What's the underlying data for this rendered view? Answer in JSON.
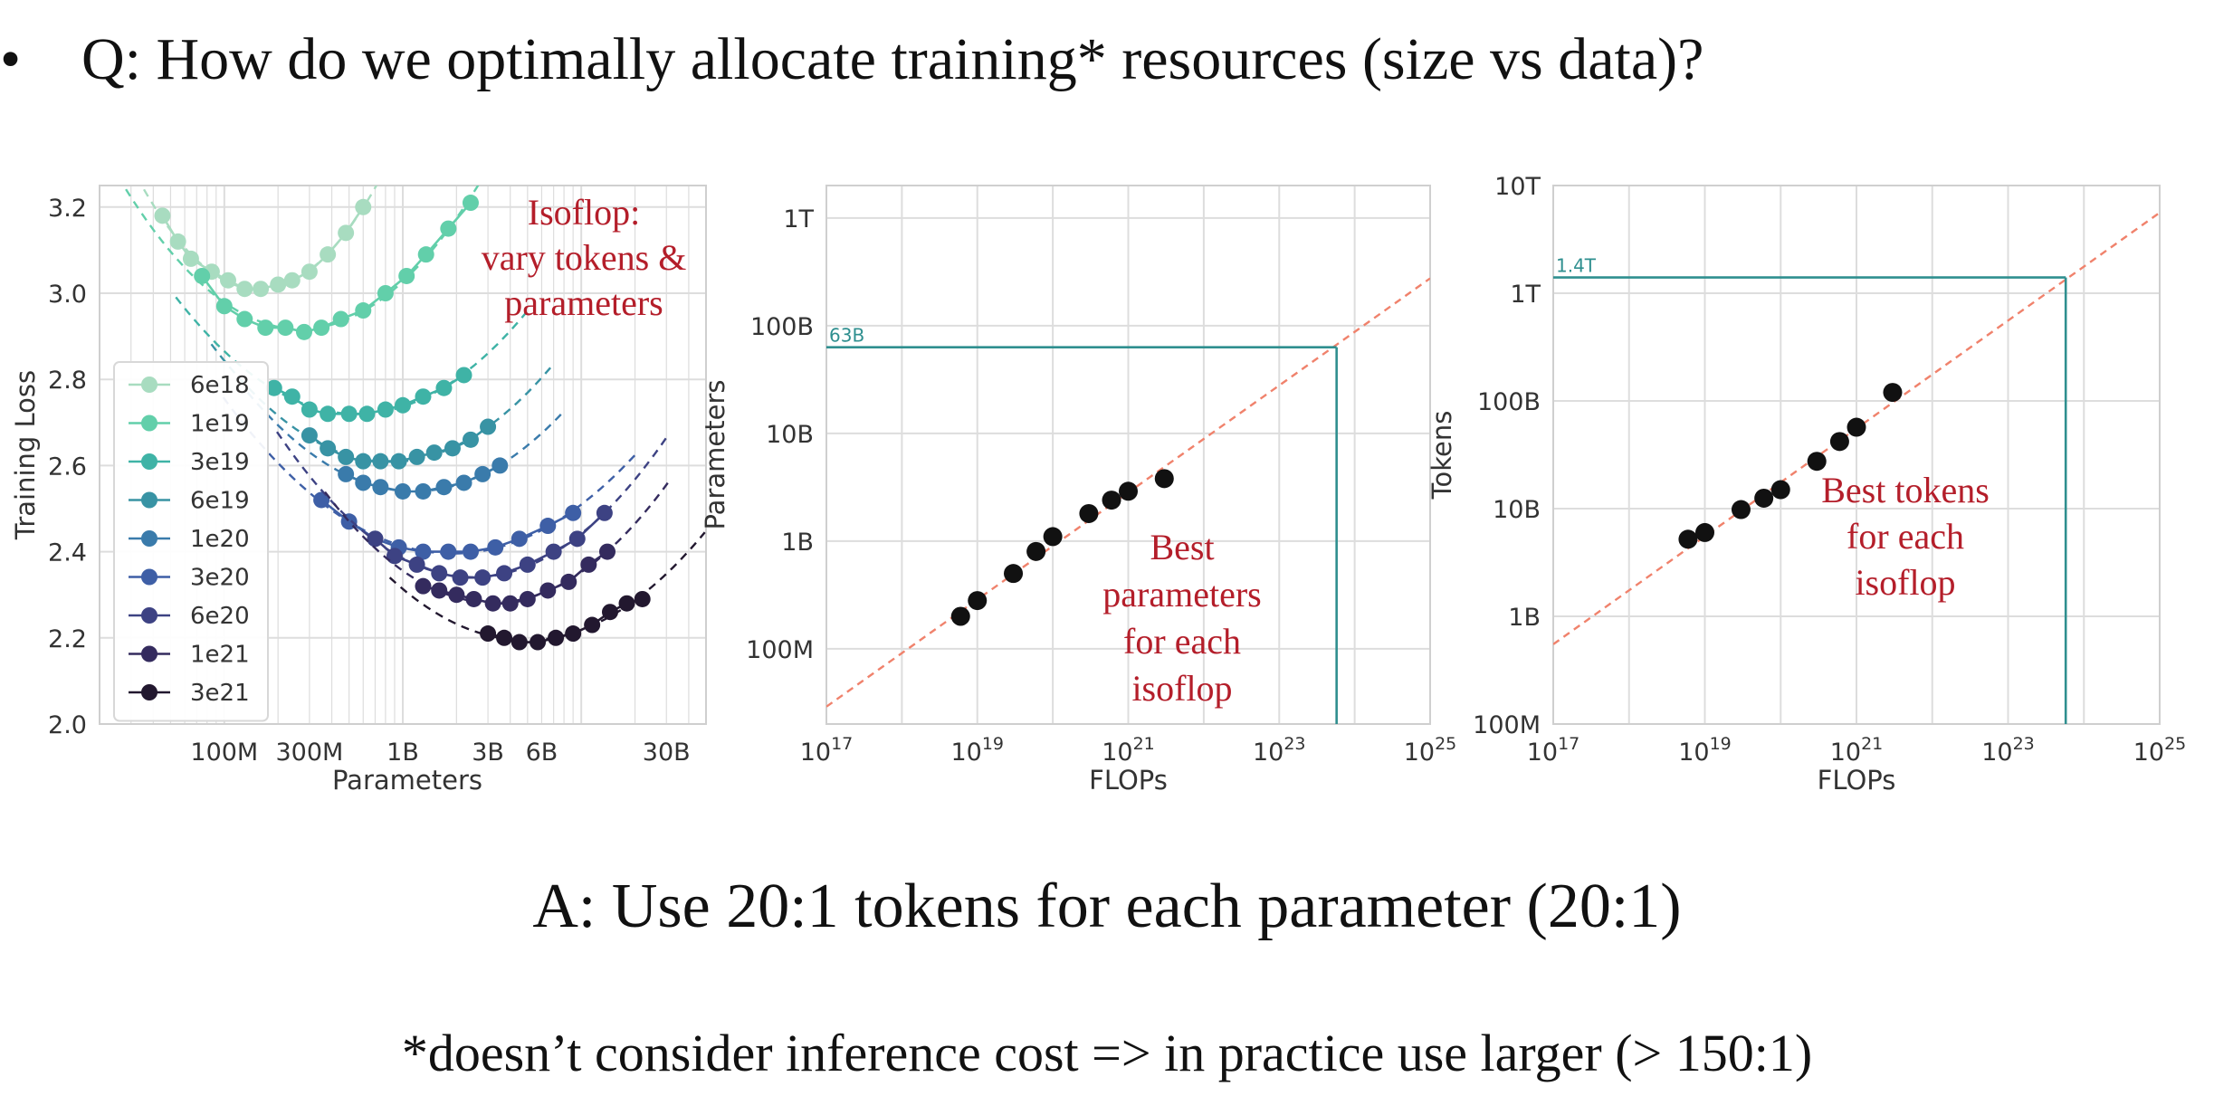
{
  "slide": {
    "bullet": "•",
    "question": "Q: How do we optimally allocate training* resources (size vs data)?",
    "answer": "A: Use 20:1 tokens for each parameter (20:1)",
    "footnote": "*doesn’t consider inference cost => in practice use larger (> 150:1)"
  },
  "colors": {
    "series": [
      "#a8dcc0",
      "#62cfaa",
      "#3fb3a6",
      "#3893a4",
      "#3a7bab",
      "#3e5fa6",
      "#3d4283",
      "#342b5e",
      "#22182f"
    ],
    "points": "#111111",
    "fit_line": "#f0826c",
    "projection": "#2f8f8f",
    "annotation": "#b41e2a",
    "grid": "#dddddd"
  },
  "chart_data": [
    {
      "type": "line",
      "ylabel": "Training Loss",
      "xlabel": "Parameters",
      "x_scale": "log",
      "xlim": [
        20000000.0,
        50000000000.0
      ],
      "ylim": [
        2.0,
        3.25
      ],
      "x_ticks": [
        {
          "value": 100000000.0,
          "label": "100M"
        },
        {
          "value": 300000000.0,
          "label": "300M"
        },
        {
          "value": 1000000000.0,
          "label": "1B"
        },
        {
          "value": 3000000000.0,
          "label": "3B"
        },
        {
          "value": 6000000000.0,
          "label": "6B"
        },
        {
          "value": 30000000000.0,
          "label": "30B"
        }
      ],
      "y_ticks": [
        {
          "value": 2.0,
          "label": "2.0"
        },
        {
          "value": 2.2,
          "label": "2.2"
        },
        {
          "value": 2.4,
          "label": "2.4"
        },
        {
          "value": 2.6,
          "label": "2.6"
        },
        {
          "value": 2.8,
          "label": "2.8"
        },
        {
          "value": 3.0,
          "label": "3.0"
        },
        {
          "value": 3.2,
          "label": "3.2"
        }
      ],
      "grid": true,
      "legend_position": "center-left",
      "annotation": [
        "Isoflop:",
        "vary tokens &",
        "parameters"
      ],
      "series": [
        {
          "name": "6e18",
          "points": [
            [
              45000000.0,
              3.18
            ],
            [
              55000000.0,
              3.12
            ],
            [
              65000000.0,
              3.08
            ],
            [
              85000000.0,
              3.05
            ],
            [
              105000000.0,
              3.03
            ],
            [
              130000000.0,
              3.01
            ],
            [
              160000000.0,
              3.01
            ],
            [
              200000000.0,
              3.02
            ],
            [
              240000000.0,
              3.03
            ],
            [
              300000000.0,
              3.05
            ],
            [
              380000000.0,
              3.09
            ],
            [
              480000000.0,
              3.14
            ],
            [
              600000000.0,
              3.2
            ]
          ]
        },
        {
          "name": "1e19",
          "points": [
            [
              75000000.0,
              3.04
            ],
            [
              100000000.0,
              2.97
            ],
            [
              130000000.0,
              2.94
            ],
            [
              170000000.0,
              2.92
            ],
            [
              220000000.0,
              2.92
            ],
            [
              280000000.0,
              2.91
            ],
            [
              350000000.0,
              2.92
            ],
            [
              450000000.0,
              2.94
            ],
            [
              600000000.0,
              2.96
            ],
            [
              800000000.0,
              3.0
            ],
            [
              1050000000.0,
              3.04
            ],
            [
              1350000000.0,
              3.09
            ],
            [
              1800000000.0,
              3.15
            ],
            [
              2400000000.0,
              3.21
            ]
          ]
        },
        {
          "name": "3e19",
          "points": [
            [
              190000000.0,
              2.78
            ],
            [
              240000000.0,
              2.76
            ],
            [
              300000000.0,
              2.73
            ],
            [
              380000000.0,
              2.72
            ],
            [
              500000000.0,
              2.72
            ],
            [
              630000000.0,
              2.72
            ],
            [
              800000000.0,
              2.73
            ],
            [
              1000000000.0,
              2.74
            ],
            [
              1300000000.0,
              2.76
            ],
            [
              1700000000.0,
              2.78
            ],
            [
              2200000000.0,
              2.81
            ]
          ]
        },
        {
          "name": "6e19",
          "points": [
            [
              300000000.0,
              2.67
            ],
            [
              380000000.0,
              2.64
            ],
            [
              480000000.0,
              2.62
            ],
            [
              600000000.0,
              2.61
            ],
            [
              750000000.0,
              2.61
            ],
            [
              950000000.0,
              2.61
            ],
            [
              1200000000.0,
              2.62
            ],
            [
              1500000000.0,
              2.63
            ],
            [
              1900000000.0,
              2.64
            ],
            [
              2400000000.0,
              2.66
            ],
            [
              3000000000.0,
              2.69
            ]
          ]
        },
        {
          "name": "1e20",
          "points": [
            [
              480000000.0,
              2.58
            ],
            [
              600000000.0,
              2.56
            ],
            [
              750000000.0,
              2.55
            ],
            [
              1000000000.0,
              2.54
            ],
            [
              1300000000.0,
              2.54
            ],
            [
              1700000000.0,
              2.55
            ],
            [
              2200000000.0,
              2.56
            ],
            [
              2800000000.0,
              2.58
            ],
            [
              3500000000.0,
              2.6
            ]
          ]
        },
        {
          "name": "3e20",
          "points": [
            [
              350000000.0,
              2.52
            ],
            [
              500000000.0,
              2.47
            ],
            [
              700000000.0,
              2.43
            ],
            [
              950000000.0,
              2.41
            ],
            [
              1300000000.0,
              2.4
            ],
            [
              1800000000.0,
              2.4
            ],
            [
              2400000000.0,
              2.4
            ],
            [
              3300000000.0,
              2.41
            ],
            [
              4500000000.0,
              2.43
            ],
            [
              6500000000.0,
              2.46
            ],
            [
              9000000000.0,
              2.49
            ]
          ]
        },
        {
          "name": "6e20",
          "points": [
            [
              700000000.0,
              2.43
            ],
            [
              900000000.0,
              2.39
            ],
            [
              1200000000.0,
              2.37
            ],
            [
              1600000000.0,
              2.35
            ],
            [
              2100000000.0,
              2.34
            ],
            [
              2800000000.0,
              2.34
            ],
            [
              3700000000.0,
              2.35
            ],
            [
              5000000000.0,
              2.37
            ],
            [
              7000000000.0,
              2.4
            ],
            [
              9500000000.0,
              2.43
            ],
            [
              13500000000.0,
              2.49
            ]
          ]
        },
        {
          "name": "1e21",
          "points": [
            [
              1300000000.0,
              2.32
            ],
            [
              1600000000.0,
              2.31
            ],
            [
              2000000000.0,
              2.3
            ],
            [
              2500000000.0,
              2.29
            ],
            [
              3200000000.0,
              2.28
            ],
            [
              4000000000.0,
              2.28
            ],
            [
              5000000000.0,
              2.29
            ],
            [
              6500000000.0,
              2.31
            ],
            [
              8500000000.0,
              2.33
            ],
            [
              11000000000.0,
              2.37
            ],
            [
              14000000000.0,
              2.4
            ]
          ]
        },
        {
          "name": "3e21",
          "points": [
            [
              3000000000.0,
              2.21
            ],
            [
              3700000000.0,
              2.2
            ],
            [
              4500000000.0,
              2.19
            ],
            [
              5700000000.0,
              2.19
            ],
            [
              7200000000.0,
              2.2
            ],
            [
              9000000000.0,
              2.21
            ],
            [
              11500000000.0,
              2.23
            ],
            [
              14500000000.0,
              2.26
            ],
            [
              18000000000.0,
              2.28
            ],
            [
              22000000000.0,
              2.29
            ]
          ]
        }
      ]
    },
    {
      "type": "scatter",
      "ylabel": "Parameters",
      "xlabel": "FLOPs",
      "x_scale": "log",
      "y_scale": "log",
      "xlim": [
        1e+17,
        1e+25
      ],
      "ylim": [
        20000000.0,
        2000000000000.0
      ],
      "x_ticks": [
        {
          "value": 1e+17,
          "exp": "17"
        },
        {
          "value": 1e+19,
          "exp": "19"
        },
        {
          "value": 1e+21,
          "exp": "21"
        },
        {
          "value": 1e+23,
          "exp": "23"
        },
        {
          "value": 1e+25,
          "exp": "25"
        }
      ],
      "y_ticks": [
        {
          "value": 100000000.0,
          "label": "100M"
        },
        {
          "value": 1000000000.0,
          "label": "1B"
        },
        {
          "value": 10000000000.0,
          "label": "10B"
        },
        {
          "value": 100000000000.0,
          "label": "100B"
        },
        {
          "value": 1000000000000.0,
          "label": "1T"
        }
      ],
      "grid": true,
      "points": [
        [
          6e+18,
          200000000.0
        ],
        [
          1e+19,
          280000000.0
        ],
        [
          3e+19,
          500000000.0
        ],
        [
          6e+19,
          800000000.0
        ],
        [
          1e+20,
          1100000000.0
        ],
        [
          3e+20,
          1800000000.0
        ],
        [
          6e+20,
          2400000000.0
        ],
        [
          1e+21,
          2900000000.0
        ],
        [
          3e+21,
          3800000000.0
        ]
      ],
      "fit_line": [
        [
          1e+17,
          29000000.0
        ],
        [
          1e+25,
          275000000000.0
        ]
      ],
      "projection": {
        "x": 5.76e+23,
        "y": 63000000000.0,
        "label": "63B"
      },
      "annotation": [
        "Best",
        "parameters",
        "for each",
        "isoflop"
      ]
    },
    {
      "type": "scatter",
      "ylabel": "Tokens",
      "xlabel": "FLOPs",
      "x_scale": "log",
      "y_scale": "log",
      "xlim": [
        1e+17,
        1e+25
      ],
      "ylim": [
        100000000.0,
        10000000000000.0
      ],
      "x_ticks": [
        {
          "value": 1e+17,
          "exp": "17"
        },
        {
          "value": 1e+19,
          "exp": "19"
        },
        {
          "value": 1e+21,
          "exp": "21"
        },
        {
          "value": 1e+23,
          "exp": "23"
        },
        {
          "value": 1e+25,
          "exp": "25"
        }
      ],
      "y_ticks": [
        {
          "value": 100000000.0,
          "label": "100M"
        },
        {
          "value": 1000000000.0,
          "label": "1B"
        },
        {
          "value": 10000000000.0,
          "label": "10B"
        },
        {
          "value": 100000000000.0,
          "label": "100B"
        },
        {
          "value": 1000000000000.0,
          "label": "1T"
        },
        {
          "value": 10000000000000.0,
          "label": "10T"
        }
      ],
      "grid": true,
      "points": [
        [
          6e+18,
          5200000000.0
        ],
        [
          1e+19,
          6000000000.0
        ],
        [
          3e+19,
          9800000000.0
        ],
        [
          6e+19,
          12500000000.0
        ],
        [
          1e+20,
          15000000000.0
        ],
        [
          3e+20,
          27500000000.0
        ],
        [
          6e+20,
          42000000000.0
        ],
        [
          1e+21,
          57000000000.0
        ],
        [
          3e+21,
          120000000000.0
        ]
      ],
      "fit_line": [
        [
          1e+17,
          550000000.0
        ],
        [
          1e+25,
          5600000000000.0
        ]
      ],
      "projection": {
        "x": 5.76e+23,
        "y": 1400000000000.0,
        "label": "1.4T"
      },
      "annotation": [
        "Best tokens",
        "for each",
        "isoflop"
      ]
    }
  ]
}
